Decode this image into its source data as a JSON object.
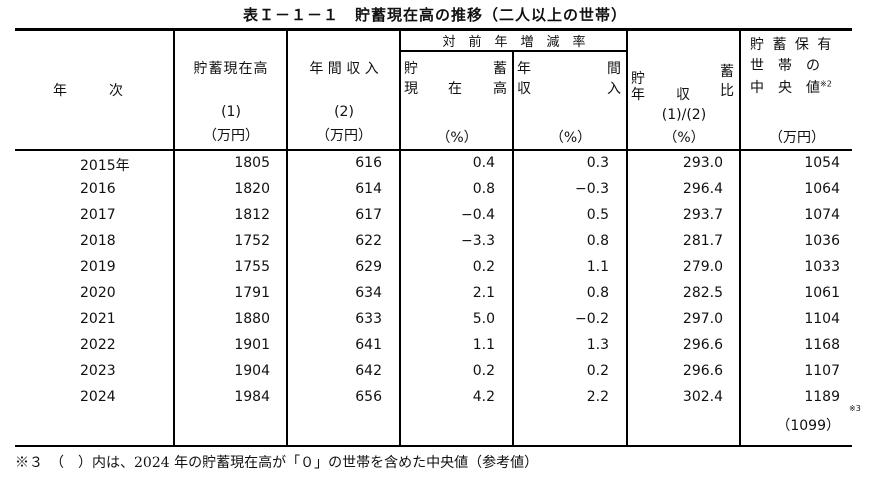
{
  "title": "表Ｉ－１－１　貯蓄現在高の推移（二人以上の世帯）",
  "header": {
    "year_col": {
      "line1": "年　　　次"
    },
    "savings": {
      "line1": "貯蓄現在高",
      "ref": "(1)",
      "unit": "（万円）"
    },
    "income": {
      "line1": "年 間 収 入",
      "ref": "(2)",
      "unit": "（万円）"
    },
    "yoy_group": "対　前　年　増　減　率",
    "yoy_savings": {
      "l1a": "貯",
      "l1b": "蓄",
      "l2a": "現",
      "l2b": "在",
      "l2c": "高",
      "unit": "（%）"
    },
    "yoy_income": {
      "l1a": "年",
      "l1b": "間",
      "l2a": "収",
      "l2b": "入",
      "unit": "（%）"
    },
    "ratio": {
      "l1a": "貯",
      "l1b": "蓄",
      "l2a": "年",
      "l2b": "収",
      "l2c": "比",
      "ref": "(1)/(2)",
      "unit": "（%）"
    },
    "median": {
      "l1": "貯 蓄 保 有",
      "l2": "世　帯　の",
      "l3": "中　央　値",
      "note": "※2",
      "unit": "（万円）"
    }
  },
  "rows": [
    {
      "year": "2015年",
      "savings": "1805",
      "income": "616",
      "yoy_savings": "0.4",
      "yoy_income": "0.3",
      "ratio": "293.0",
      "median": "1054"
    },
    {
      "year": "2016",
      "savings": "1820",
      "income": "614",
      "yoy_savings": "0.8",
      "yoy_income": "−0.3",
      "ratio": "296.4",
      "median": "1064"
    },
    {
      "year": "2017",
      "savings": "1812",
      "income": "617",
      "yoy_savings": "−0.4",
      "yoy_income": "0.5",
      "ratio": "293.7",
      "median": "1074"
    },
    {
      "year": "2018",
      "savings": "1752",
      "income": "622",
      "yoy_savings": "−3.3",
      "yoy_income": "0.8",
      "ratio": "281.7",
      "median": "1036"
    },
    {
      "year": "2019",
      "savings": "1755",
      "income": "629",
      "yoy_savings": "0.2",
      "yoy_income": "1.1",
      "ratio": "279.0",
      "median": "1033"
    },
    {
      "year": "2020",
      "savings": "1791",
      "income": "634",
      "yoy_savings": "2.1",
      "yoy_income": "0.8",
      "ratio": "282.5",
      "median": "1061"
    },
    {
      "year": "2021",
      "savings": "1880",
      "income": "633",
      "yoy_savings": "5.0",
      "yoy_income": "−0.2",
      "ratio": "297.0",
      "median": "1104"
    },
    {
      "year": "2022",
      "savings": "1901",
      "income": "641",
      "yoy_savings": "1.1",
      "yoy_income": "1.3",
      "ratio": "296.6",
      "median": "1168"
    },
    {
      "year": "2023",
      "savings": "1904",
      "income": "642",
      "yoy_savings": "0.2",
      "yoy_income": "0.2",
      "ratio": "296.6",
      "median": "1107"
    },
    {
      "year": "2024",
      "savings": "1984",
      "income": "656",
      "yoy_savings": "4.2",
      "yoy_income": "2.2",
      "ratio": "302.4",
      "median": "1189"
    }
  ],
  "extra_median": {
    "value": "（1099）",
    "note": "※3"
  },
  "footnote": "※３　（　）内は、2024 年の貯蓄現在高が「０」の世帯を含めた中央値（参考値）"
}
